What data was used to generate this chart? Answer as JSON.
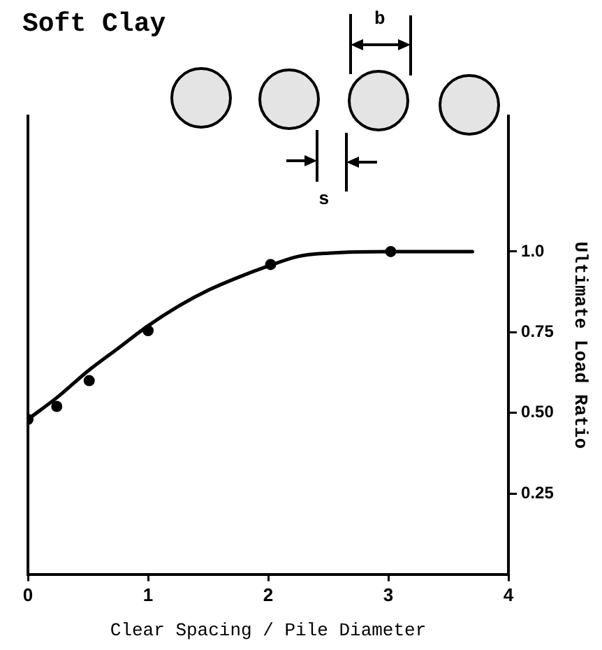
{
  "chart_data": {
    "type": "line",
    "title": "Soft Clay",
    "xlabel": "Clear Spacing / Pile Diameter",
    "ylabel": "Ultimate Load Ratio",
    "annotations": [
      "b",
      "s"
    ],
    "xlim": [
      0,
      4
    ],
    "xticks": [
      0,
      1,
      2,
      3,
      4
    ],
    "ylim": [
      0,
      1.42
    ],
    "yticks": [
      0.25,
      {
        "value": 0.5,
        "label": "0.50"
      },
      0.75,
      {
        "value": 1,
        "label": "1.0"
      }
    ],
    "grid": false,
    "legend": false,
    "series": [
      {
        "color": "#000000",
        "marker": "none",
        "x": [
          0,
          0.25,
          0.5,
          0.75,
          1,
          1.25,
          1.5,
          1.75,
          2,
          2.25,
          2.5,
          3,
          3.7
        ],
        "values": [
          0.48,
          0.55,
          0.63,
          0.7,
          0.77,
          0.83,
          0.88,
          0.92,
          0.955,
          0.985,
          0.995,
          1.0,
          1.0
        ]
      },
      {
        "type": "scatter",
        "color": "#000000",
        "marker": "circle",
        "x": [
          0,
          0.24,
          0.51,
          1.0,
          2.02,
          3.02
        ],
        "values": [
          0.48,
          0.52,
          0.6,
          0.755,
          0.96,
          1.0
        ]
      }
    ]
  }
}
